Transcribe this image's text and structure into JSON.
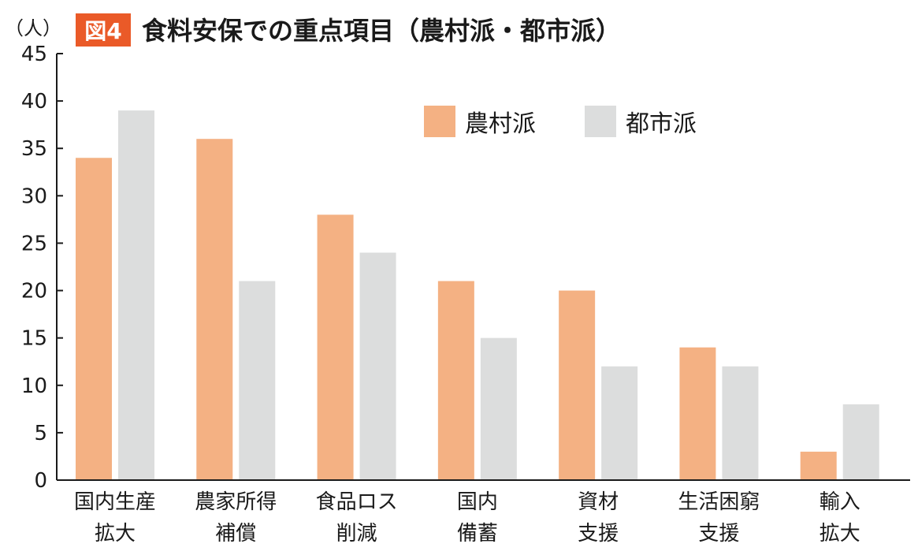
{
  "header": {
    "unit": "（人）",
    "badge": "図4",
    "title": "食料安保での重点項目（農村派・都市派）"
  },
  "colors": {
    "rural": "#f4b183",
    "urban": "#dcdddd",
    "badge": "#ea5a28",
    "axis": "#1a1a1a"
  },
  "chart_data": {
    "type": "bar",
    "title": "食料安保での重点項目（農村派・都市派）",
    "ylabel": "（人）",
    "xlabel": "",
    "ylim": [
      0,
      45
    ],
    "yticks": [
      "0",
      "5",
      "10",
      "15",
      "20",
      "25",
      "30",
      "35",
      "40",
      "45"
    ],
    "categories": [
      [
        "国内生産",
        "拡大"
      ],
      [
        "農家所得",
        "補償"
      ],
      [
        "食品ロス",
        "削減"
      ],
      [
        "国内",
        "備蓄"
      ],
      [
        "資材",
        "支援"
      ],
      [
        "生活困窮",
        "支援"
      ],
      [
        "輸入",
        "拡大"
      ]
    ],
    "series": [
      {
        "name": "農村派",
        "values": [
          34,
          36,
          28,
          21,
          20,
          14,
          3
        ]
      },
      {
        "name": "都市派",
        "values": [
          39,
          21,
          24,
          15,
          12,
          12,
          8
        ]
      }
    ],
    "legend": "top-right",
    "grid": false
  }
}
